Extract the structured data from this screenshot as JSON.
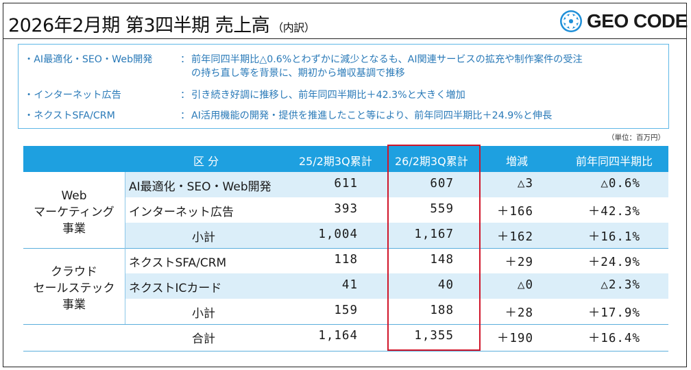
{
  "title": {
    "main": "2026年2月期 第3四半期 売上高",
    "sub": "（内訳）"
  },
  "logo": {
    "text": "GEO CODE"
  },
  "notes": [
    {
      "label": "・AI最適化・SEO・Web開発",
      "sep": "：",
      "lines": [
        "前年同四半期比△0.6%とわずかに減少となるも、AI関連サービスの拡充や制作案件の受注",
        "の持ち直し等を背景に、期初から増収基調で推移"
      ]
    },
    {
      "label": "・インターネット広告",
      "sep": "：",
      "lines": [
        "引き続き好調に推移し、前年同四半期比＋42.3%と大きく増加"
      ]
    },
    {
      "label": "・ネクストSFA/CRM",
      "sep": "：",
      "lines": [
        "AI活用機能の開発・提供を推進したこと等により、前年同四半期比＋24.9%と伸長"
      ]
    }
  ],
  "unit": "（単位：百万円）",
  "table": {
    "headers": [
      "区 分",
      "25/2期3Q累計",
      "26/2期3Q累計",
      "増減",
      "前年同四半期比"
    ],
    "groups": [
      {
        "label_lines": [
          "Web",
          "マーケティング",
          "事業"
        ]
      },
      {
        "label_lines": [
          "クラウド",
          "セールステック",
          "事業"
        ]
      }
    ],
    "rows": [
      {
        "name": "AI最適化・SEO・Web開発",
        "prev": "611",
        "curr": "607",
        "diff": "△3",
        "ratio": "△0.6%"
      },
      {
        "name": "インターネット広告",
        "prev": "393",
        "curr": "559",
        "diff": "＋166",
        "ratio": "＋42.3%"
      },
      {
        "name": "小計",
        "prev": "1,004",
        "curr": "1,167",
        "diff": "＋162",
        "ratio": "＋16.1%"
      },
      {
        "name": "ネクストSFA/CRM",
        "prev": "118",
        "curr": "148",
        "diff": "＋29",
        "ratio": "＋24.9%"
      },
      {
        "name": "ネクストICカード",
        "prev": "41",
        "curr": "40",
        "diff": "△0",
        "ratio": "△2.3%"
      },
      {
        "name": "小計",
        "prev": "159",
        "curr": "188",
        "diff": "＋28",
        "ratio": "＋17.9%"
      },
      {
        "name": "合計",
        "prev": "1,164",
        "curr": "1,355",
        "diff": "＋190",
        "ratio": "＋16.4%"
      }
    ]
  },
  "colors": {
    "header_bg": "#1ea0e0",
    "row_shade": "#dbeef9",
    "note_text": "#2a7ab8",
    "highlight": "#d0152a"
  }
}
